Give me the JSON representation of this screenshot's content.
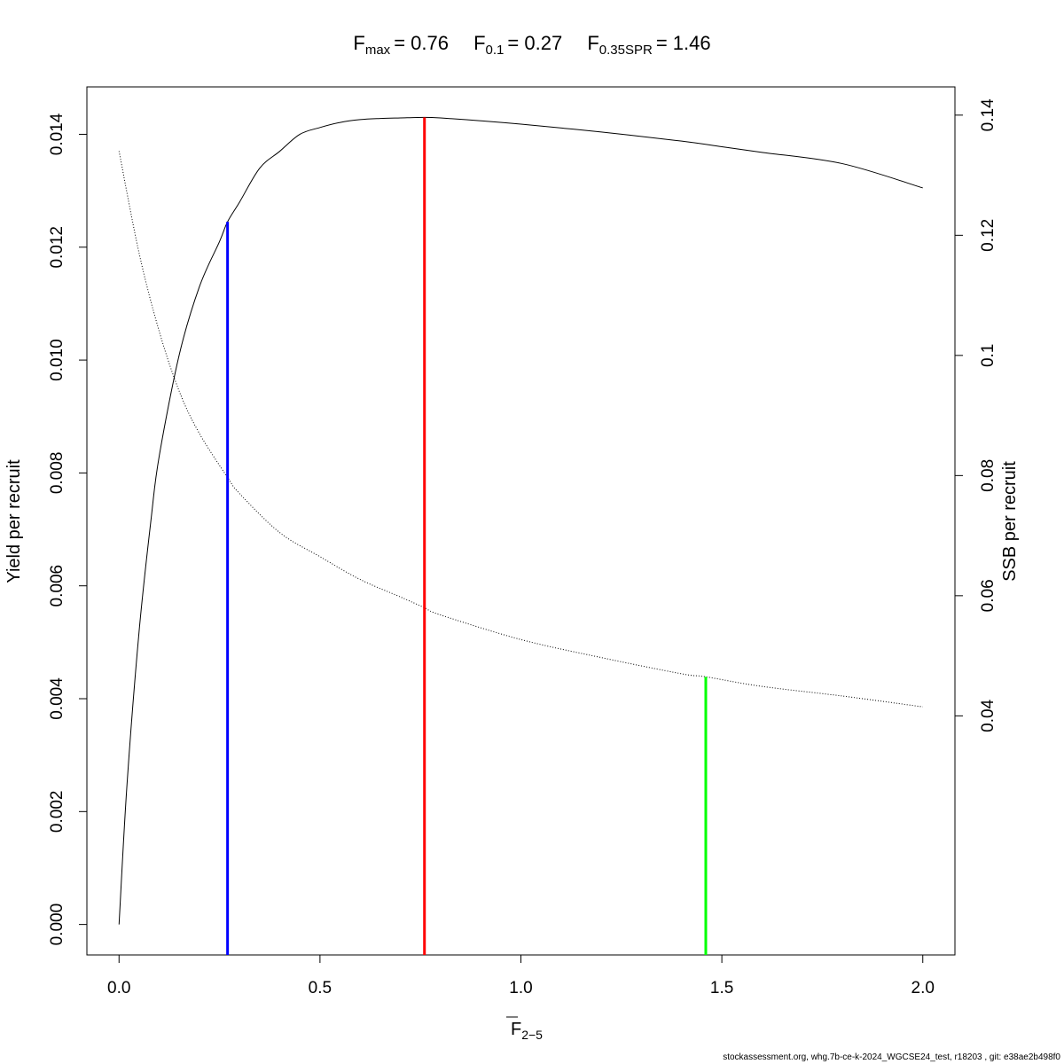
{
  "chart_data": {
    "type": "line",
    "title": {
      "fmax_label": "F",
      "fmax_sub": "max",
      "fmax_value": "= 0.76",
      "f01_label": "F",
      "f01_sub": "0.1",
      "f01_value": "= 0.27",
      "fspr_label": "F",
      "fspr_sub": "0.35SPR",
      "fspr_value": "= 1.46"
    },
    "xlabel": {
      "main": "F",
      "sub": "2−5"
    },
    "ylabel_left": "Yield per recruit",
    "ylabel_right": "SSB per recruit",
    "xlim": [
      -0.08,
      2.08
    ],
    "ylim_left": [
      -0.00054,
      0.01484
    ],
    "ylim_right": [
      0.0002,
      0.1447
    ],
    "x_ticks": [
      0.0,
      0.5,
      1.0,
      1.5,
      2.0
    ],
    "x_tick_labels": [
      "0.0",
      "0.5",
      "1.0",
      "1.5",
      "2.0"
    ],
    "y_left_ticks": [
      0.0,
      0.002,
      0.004,
      0.006,
      0.008,
      0.01,
      0.012,
      0.014
    ],
    "y_left_tick_labels": [
      "0.000",
      "0.002",
      "0.004",
      "0.006",
      "0.008",
      "0.010",
      "0.012",
      "0.014"
    ],
    "y_right_ticks": [
      0.04,
      0.06,
      0.08,
      0.1,
      0.12,
      0.14
    ],
    "y_right_tick_labels": [
      "0.04",
      "0.06",
      "0.08",
      "0.1",
      "0.12",
      "0.14"
    ],
    "series": [
      {
        "axis": "left",
        "style": "solid",
        "color": "#000000",
        "x": [
          0.0,
          0.02,
          0.05,
          0.08,
          0.1,
          0.15,
          0.2,
          0.25,
          0.27,
          0.3,
          0.35,
          0.4,
          0.45,
          0.5,
          0.55,
          0.6,
          0.65,
          0.7,
          0.76,
          0.8,
          0.9,
          1.0,
          1.2,
          1.4,
          1.5,
          1.6,
          1.8,
          2.0
        ],
        "y": [
          0.0,
          0.0025,
          0.0052,
          0.0072,
          0.0083,
          0.0101,
          0.0113,
          0.0121,
          0.01245,
          0.0128,
          0.0134,
          0.0137,
          0.014,
          0.01412,
          0.01421,
          0.01426,
          0.01428,
          0.01429,
          0.0143,
          0.01429,
          0.01424,
          0.01418,
          0.01404,
          0.01388,
          0.01378,
          0.01368,
          0.01348,
          0.01305
        ]
      },
      {
        "axis": "right",
        "style": "dotted",
        "color": "#000000",
        "x": [
          0.0,
          0.05,
          0.1,
          0.15,
          0.2,
          0.27,
          0.3,
          0.4,
          0.5,
          0.6,
          0.7,
          0.76,
          0.8,
          1.0,
          1.2,
          1.4,
          1.46,
          1.6,
          1.8,
          2.0
        ],
        "y": [
          0.134,
          0.117,
          0.104,
          0.094,
          0.087,
          0.0797,
          0.077,
          0.0705,
          0.0665,
          0.0627,
          0.0598,
          0.058,
          0.0568,
          0.0527,
          0.0497,
          0.047,
          0.0465,
          0.0449,
          0.0433,
          0.0415
        ]
      }
    ],
    "reference_lines": [
      {
        "x": 0.27,
        "axis": "left",
        "y_top": 0.01245,
        "color": "#0000ff"
      },
      {
        "x": 0.76,
        "axis": "left",
        "y_top": 0.0143,
        "color": "#ff0000"
      },
      {
        "x": 1.46,
        "axis": "right",
        "y_top": 0.0465,
        "color": "#00ff00"
      }
    ],
    "grid": false,
    "legend": "none"
  },
  "footer": "stockassessment.org, whg.7b-ce-k-2024_WGCSE24_test, r18203 , git: e38ae2b498f0"
}
